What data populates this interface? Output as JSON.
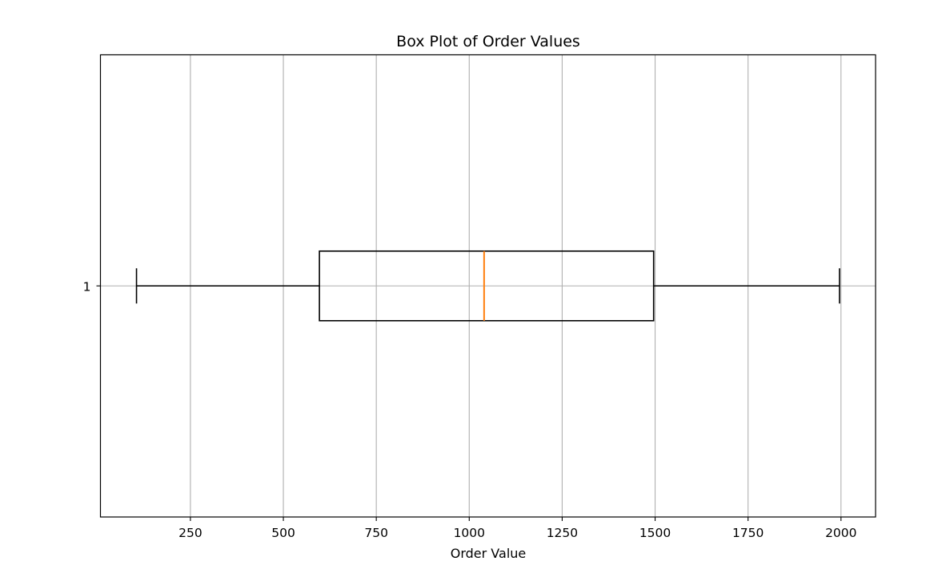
{
  "chart_data": {
    "type": "box",
    "orientation": "horizontal",
    "title": "Box Plot of Order Values",
    "xlabel": "Order Value",
    "ylabel": "",
    "categories": [
      "1"
    ],
    "boxes": [
      {
        "category": "1",
        "whisker_low": 105,
        "q1": 597,
        "median": 1040,
        "q3": 1496,
        "whisker_high": 1996
      }
    ],
    "xlim": [
      8,
      2093
    ],
    "xticks": [
      250,
      500,
      750,
      1000,
      1250,
      1500,
      1750,
      2000
    ],
    "xtick_labels": [
      "250",
      "500",
      "750",
      "1000",
      "1250",
      "1500",
      "1750",
      "2000"
    ],
    "grid": true,
    "colors": {
      "box": "#000000",
      "median": "#ff7f0e",
      "grid": "#b0b0b0",
      "axes": "#000000"
    }
  }
}
